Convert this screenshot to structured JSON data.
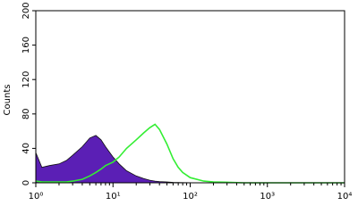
{
  "chart_data": {
    "type": "line",
    "y_label": "Counts",
    "x_log": true,
    "x": [
      1,
      1.2,
      1.5,
      2,
      2.5,
      3,
      4,
      5,
      6,
      7,
      8,
      10,
      12,
      15,
      20,
      25,
      30,
      35,
      40,
      50,
      60,
      70,
      80,
      100,
      150,
      200,
      500,
      1000,
      10000
    ],
    "series": [
      {
        "color": "#5b1fb5",
        "fill": true,
        "values": [
          35,
          18,
          20,
          22,
          26,
          32,
          42,
          52,
          55,
          50,
          42,
          30,
          22,
          14,
          8,
          5,
          3,
          2,
          1.5,
          1,
          0.5,
          0.3,
          0.2,
          0.1,
          0,
          0,
          0,
          0,
          0
        ]
      },
      {
        "color": "#33ee33",
        "fill": false,
        "values": [
          2,
          1,
          1,
          1,
          1,
          2,
          4,
          8,
          12,
          16,
          20,
          24,
          30,
          40,
          50,
          58,
          64,
          68,
          62,
          45,
          28,
          18,
          12,
          6,
          2,
          1,
          0,
          0,
          0
        ]
      }
    ],
    "xlim": [
      1,
      10000
    ],
    "xticks": [
      {
        "value": 1,
        "label": "10⁰"
      },
      {
        "value": 10,
        "label": "10¹"
      },
      {
        "value": 100,
        "label": "10²"
      },
      {
        "value": 1000,
        "label": "10³"
      },
      {
        "value": 10000,
        "label": "10⁴"
      }
    ],
    "ylim": [
      0,
      200
    ],
    "yticks": [
      0,
      40,
      80,
      120,
      160,
      200
    ]
  }
}
